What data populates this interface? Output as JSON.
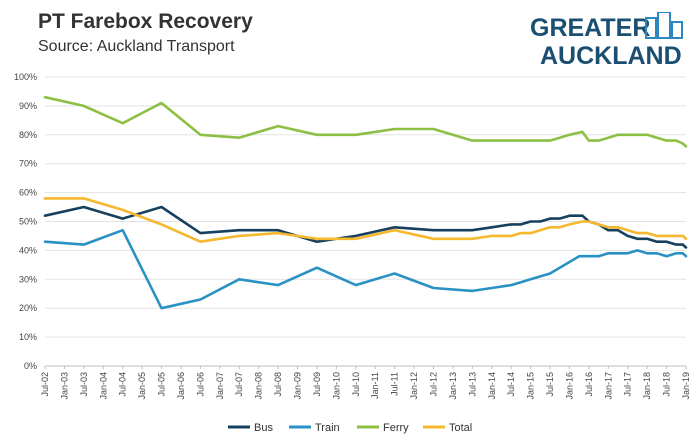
{
  "header": {
    "title": "PT Farebox Recovery",
    "subtitle": "Source: Auckland Transport"
  },
  "logo": {
    "line1": "GREATER",
    "line2": "AUCKLAND",
    "color": "#1b4f72",
    "icon_color": "#2e86c1"
  },
  "chart_data": {
    "type": "line",
    "title": "PT Farebox Recovery",
    "subtitle": "Source: Auckland Transport",
    "xlabel": "",
    "ylabel": "",
    "ylim": [
      0,
      100
    ],
    "y_ticks": [
      "0%",
      "10%",
      "20%",
      "30%",
      "40%",
      "50%",
      "60%",
      "70%",
      "80%",
      "90%",
      "100%"
    ],
    "x_ticks": [
      "Jul-02",
      "Jan-03",
      "Jul-03",
      "Jan-04",
      "Jul-04",
      "Jan-05",
      "Jul-05",
      "Jan-06",
      "Jul-06",
      "Jan-07",
      "Jul-07",
      "Jan-08",
      "Jul-08",
      "Jan-09",
      "Jul-09",
      "Jan-10",
      "Jul-10",
      "Jan-11",
      "Jul-11",
      "Jan-12",
      "Jul-12",
      "Jan-13",
      "Jul-13",
      "Jan-14",
      "Jul-14",
      "Jan-15",
      "Jul-15",
      "Jan-16",
      "Jul-16",
      "Jan-17",
      "Jul-17",
      "Jan-18",
      "Jul-18",
      "Jan-19"
    ],
    "grid": "horizontal",
    "legend_position": "bottom",
    "series": [
      {
        "name": "Bus",
        "color": "#17405e",
        "points": [
          [
            "Jul-02",
            52
          ],
          [
            "Jul-03",
            55
          ],
          [
            "Jul-04",
            51
          ],
          [
            "Jul-05",
            55
          ],
          [
            "Jul-06",
            46
          ],
          [
            "Jul-07",
            47
          ],
          [
            "Jul-08",
            47
          ],
          [
            "Jul-09",
            43
          ],
          [
            "Jul-10",
            45
          ],
          [
            "Jul-11",
            48
          ],
          [
            "Jul-12",
            47
          ],
          [
            "Jul-13",
            47
          ],
          [
            "Jan-14",
            48
          ],
          [
            "Jul-14",
            49
          ],
          [
            "Oct-14",
            49
          ],
          [
            "Jan-15",
            50
          ],
          [
            "Apr-15",
            50
          ],
          [
            "Jul-15",
            51
          ],
          [
            "Oct-15",
            51
          ],
          [
            "Jan-16",
            52
          ],
          [
            "Apr-16",
            52
          ],
          [
            "May-16",
            52
          ],
          [
            "Jul-16",
            50
          ],
          [
            "Oct-16",
            49
          ],
          [
            "Jan-17",
            47
          ],
          [
            "Apr-17",
            47
          ],
          [
            "Jul-17",
            45
          ],
          [
            "Oct-17",
            44
          ],
          [
            "Jan-18",
            44
          ],
          [
            "Apr-18",
            43
          ],
          [
            "Jul-18",
            43
          ],
          [
            "Oct-18",
            42
          ],
          [
            "Dec-18",
            42
          ],
          [
            "Jan-19",
            41
          ]
        ]
      },
      {
        "name": "Train",
        "color": "#2a91c4",
        "points": [
          [
            "Jul-02",
            43
          ],
          [
            "Jul-03",
            42
          ],
          [
            "Jul-04",
            47
          ],
          [
            "Jul-05",
            20
          ],
          [
            "Jul-06",
            23
          ],
          [
            "Jul-07",
            30
          ],
          [
            "Jul-08",
            28
          ],
          [
            "Jul-09",
            34
          ],
          [
            "Jul-10",
            28
          ],
          [
            "Jul-11",
            32
          ],
          [
            "Jul-12",
            27
          ],
          [
            "Jul-13",
            26
          ],
          [
            "Jan-14",
            27
          ],
          [
            "Jul-14",
            28
          ],
          [
            "Oct-14",
            29
          ],
          [
            "Jan-15",
            30
          ],
          [
            "Apr-15",
            31
          ],
          [
            "Jul-15",
            32
          ],
          [
            "Oct-15",
            34
          ],
          [
            "Jan-16",
            36
          ],
          [
            "Apr-16",
            38
          ],
          [
            "Jul-16",
            38
          ],
          [
            "Oct-16",
            38
          ],
          [
            "Jan-17",
            39
          ],
          [
            "Apr-17",
            39
          ],
          [
            "Jul-17",
            39
          ],
          [
            "Oct-17",
            40
          ],
          [
            "Jan-18",
            39
          ],
          [
            "Apr-18",
            39
          ],
          [
            "Jul-18",
            38
          ],
          [
            "Oct-18",
            39
          ],
          [
            "Dec-18",
            39
          ],
          [
            "Jan-19",
            38
          ]
        ]
      },
      {
        "name": "Ferry",
        "color": "#8dbf45",
        "points": [
          [
            "Jul-02",
            93
          ],
          [
            "Jul-03",
            90
          ],
          [
            "Jul-04",
            84
          ],
          [
            "Jul-05",
            91
          ],
          [
            "Jul-06",
            80
          ],
          [
            "Jul-07",
            79
          ],
          [
            "Jul-08",
            83
          ],
          [
            "Jul-09",
            80
          ],
          [
            "Jul-10",
            80
          ],
          [
            "Jul-11",
            82
          ],
          [
            "Jul-12",
            82
          ],
          [
            "Jul-13",
            78
          ],
          [
            "Jan-14",
            78
          ],
          [
            "Jul-14",
            78
          ],
          [
            "Oct-14",
            78
          ],
          [
            "Jan-15",
            78
          ],
          [
            "Apr-15",
            78
          ],
          [
            "Jul-15",
            78
          ],
          [
            "Oct-15",
            79
          ],
          [
            "Jan-16",
            80
          ],
          [
            "May-16",
            81
          ],
          [
            "Jul-16",
            78
          ],
          [
            "Oct-16",
            78
          ],
          [
            "Jan-17",
            79
          ],
          [
            "Apr-17",
            80
          ],
          [
            "Jul-17",
            80
          ],
          [
            "Oct-17",
            80
          ],
          [
            "Jan-18",
            80
          ],
          [
            "Apr-18",
            79
          ],
          [
            "Jul-18",
            78
          ],
          [
            "Oct-18",
            78
          ],
          [
            "Dec-18",
            77
          ],
          [
            "Jan-19",
            76
          ]
        ]
      },
      {
        "name": "Total",
        "color": "#f5b82e",
        "points": [
          [
            "Jul-02",
            58
          ],
          [
            "Jul-03",
            58
          ],
          [
            "Jul-04",
            54
          ],
          [
            "Jul-05",
            49
          ],
          [
            "Jul-06",
            43
          ],
          [
            "Jul-07",
            45
          ],
          [
            "Jul-08",
            46
          ],
          [
            "Jul-09",
            44
          ],
          [
            "Jul-10",
            44
          ],
          [
            "Jul-11",
            47
          ],
          [
            "Jul-12",
            44
          ],
          [
            "Jul-13",
            44
          ],
          [
            "Jan-14",
            45
          ],
          [
            "Jul-14",
            45
          ],
          [
            "Oct-14",
            46
          ],
          [
            "Jan-15",
            46
          ],
          [
            "Apr-15",
            47
          ],
          [
            "Jul-15",
            48
          ],
          [
            "Oct-15",
            48
          ],
          [
            "Jan-16",
            49
          ],
          [
            "May-16",
            50
          ],
          [
            "Jul-16",
            50
          ],
          [
            "Oct-16",
            49
          ],
          [
            "Jan-17",
            48
          ],
          [
            "Apr-17",
            48
          ],
          [
            "Jul-17",
            47
          ],
          [
            "Oct-17",
            46
          ],
          [
            "Jan-18",
            46
          ],
          [
            "Apr-18",
            45
          ],
          [
            "Jul-18",
            45
          ],
          [
            "Oct-18",
            45
          ],
          [
            "Dec-18",
            45
          ],
          [
            "Jan-19",
            44
          ]
        ]
      }
    ]
  }
}
